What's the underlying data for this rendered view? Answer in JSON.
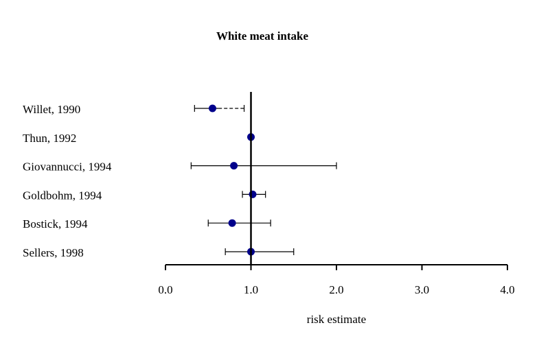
{
  "chart_data": {
    "type": "forest",
    "title": "White meat intake",
    "xlabel": "risk estimate",
    "xlim": [
      0,
      4
    ],
    "xticks": [
      "0.0",
      "1.0",
      "2.0",
      "3.0",
      "4.0"
    ],
    "reference_line": 1.0,
    "studies": [
      {
        "label": "Willet, 1990",
        "estimate": 0.55,
        "lower": 0.34,
        "upper": 0.92,
        "dashed_from": 0.62
      },
      {
        "label": "Thun, 1992",
        "estimate": 1.0,
        "lower": null,
        "upper": null
      },
      {
        "label": "Giovannucci, 1994",
        "estimate": 0.8,
        "lower": 0.3,
        "upper": 2.0
      },
      {
        "label": "Goldbohm, 1994",
        "estimate": 1.02,
        "lower": 0.9,
        "upper": 1.17
      },
      {
        "label": "Bostick, 1994",
        "estimate": 0.78,
        "lower": 0.5,
        "upper": 1.23
      },
      {
        "label": "Sellers, 1998",
        "estimate": 1.0,
        "lower": 0.7,
        "upper": 1.5
      }
    ],
    "colors": {
      "point": "#00008b",
      "line": "#000000",
      "text": "#000000"
    }
  }
}
